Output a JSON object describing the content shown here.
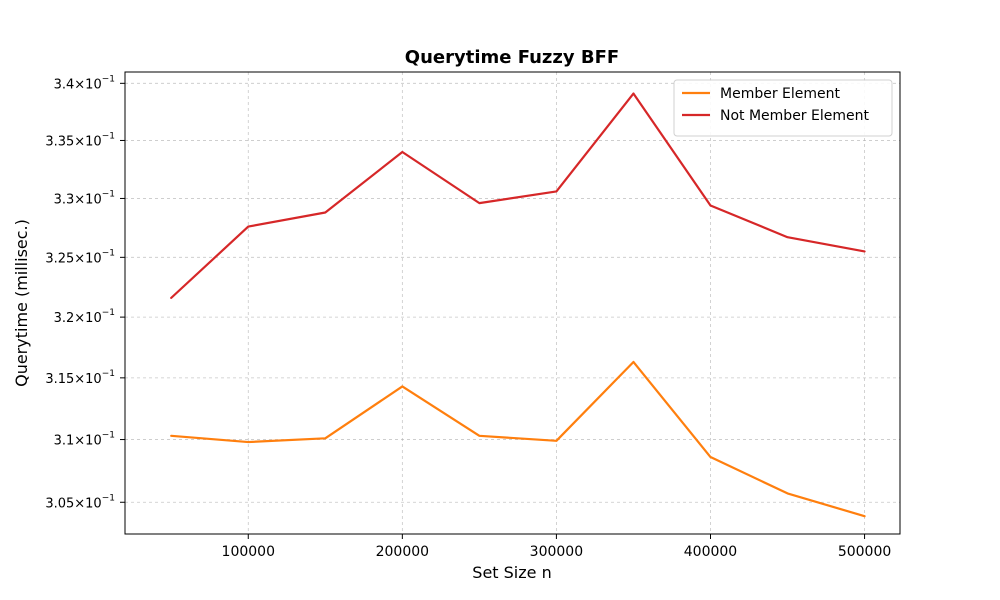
{
  "chart_data": {
    "type": "line",
    "title": "Querytime Fuzzy BFF",
    "xlabel": "Set Size n",
    "ylabel": "Querytime (millisec.)",
    "x": [
      50000,
      100000,
      150000,
      200000,
      250000,
      300000,
      350000,
      400000,
      450000,
      500000
    ],
    "xticks": [
      100000,
      200000,
      300000,
      400000,
      500000
    ],
    "xtick_labels": [
      "100000",
      "200000",
      "300000",
      "400000",
      "500000"
    ],
    "xlim": [
      20000,
      523000
    ],
    "yscale": "log",
    "ylim": [
      0.3025,
      0.341
    ],
    "yticks": [
      0.305,
      0.31,
      0.315,
      0.32,
      0.325,
      0.33,
      0.335,
      0.34
    ],
    "ytick_mantissas": [
      "3.05",
      "3.1",
      "3.15",
      "3.2",
      "3.25",
      "3.3",
      "3.35",
      "3.4"
    ],
    "ytick_times": "×",
    "ytick_base": "10",
    "ytick_exponent": "−1",
    "grid": true,
    "legend_position": "top-right",
    "series": [
      {
        "name": "Member Element",
        "color": "#ff7f0e",
        "values": [
          0.3103,
          0.3098,
          0.3101,
          0.3143,
          0.3103,
          0.3099,
          0.3163,
          0.3086,
          0.3057,
          0.3039
        ]
      },
      {
        "name": "Not Member Element",
        "color": "#d62728",
        "values": [
          0.3216,
          0.3276,
          0.3288,
          0.334,
          0.3296,
          0.3306,
          0.3391,
          0.3294,
          0.3267,
          0.3255
        ]
      }
    ]
  }
}
